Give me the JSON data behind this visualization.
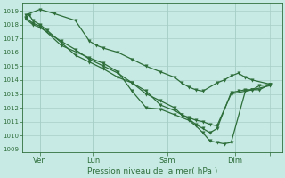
{
  "bg_color": "#c8eae4",
  "grid_color": "#a8cec8",
  "line_color": "#2d6e3a",
  "ylabel_values": [
    1009,
    1010,
    1011,
    1012,
    1013,
    1014,
    1015,
    1016,
    1017,
    1018,
    1019
  ],
  "ylim": [
    1008.8,
    1019.6
  ],
  "xlim": [
    -2,
    145
  ],
  "xtick_positions": [
    8,
    38,
    80,
    118,
    138
  ],
  "xtick_labels": [
    "Ven",
    "Lun",
    "Sam",
    "Dim",
    ""
  ],
  "xlabel": "Pression niveau de la mer( hPa )",
  "series1_x": [
    0,
    2,
    4,
    8,
    12,
    20,
    28,
    36,
    44,
    52,
    60,
    68,
    76,
    84,
    88,
    92,
    96,
    100,
    104,
    108,
    116,
    120,
    124,
    128,
    132,
    138
  ],
  "series1_y": [
    1018.5,
    1018.7,
    1018.3,
    1018.0,
    1017.6,
    1016.7,
    1015.8,
    1015.3,
    1014.8,
    1014.2,
    1013.8,
    1013.0,
    1012.5,
    1012.0,
    1011.5,
    1011.2,
    1010.8,
    1010.5,
    1010.2,
    1010.5,
    1013.1,
    1013.2,
    1013.3,
    1013.3,
    1013.6,
    1013.7
  ],
  "series2_x": [
    0,
    4,
    8,
    20,
    28,
    36,
    44,
    52,
    60,
    68,
    76,
    84,
    88,
    92,
    96,
    100,
    104,
    108,
    116,
    124,
    128,
    132,
    138
  ],
  "series2_y": [
    1018.4,
    1018.0,
    1017.8,
    1016.8,
    1016.2,
    1015.5,
    1015.0,
    1014.5,
    1013.8,
    1013.2,
    1012.2,
    1011.8,
    1011.5,
    1011.3,
    1011.1,
    1011.0,
    1010.8,
    1010.7,
    1013.0,
    1013.2,
    1013.3,
    1013.3,
    1013.7
  ],
  "series3_x": [
    0,
    4,
    8,
    20,
    36,
    44,
    52,
    60,
    68,
    76,
    84,
    92,
    96,
    100,
    104,
    108,
    112,
    116,
    124,
    128,
    138
  ],
  "series3_y": [
    1018.5,
    1018.1,
    1017.9,
    1016.5,
    1015.6,
    1015.2,
    1014.6,
    1013.2,
    1012.0,
    1011.9,
    1011.5,
    1011.1,
    1010.7,
    1010.2,
    1009.6,
    1009.5,
    1009.4,
    1009.5,
    1013.2,
    1013.3,
    1013.6
  ],
  "series4_x": [
    0,
    8,
    16,
    28,
    36,
    40,
    44,
    52,
    60,
    68,
    76,
    84,
    88,
    92,
    96,
    100,
    108,
    112,
    116,
    120,
    124,
    128,
    138
  ],
  "series4_y": [
    1018.7,
    1019.1,
    1018.8,
    1018.3,
    1016.8,
    1016.5,
    1016.3,
    1016.0,
    1015.5,
    1015.0,
    1014.6,
    1014.2,
    1013.8,
    1013.5,
    1013.3,
    1013.2,
    1013.8,
    1014.0,
    1014.3,
    1014.5,
    1014.2,
    1014.0,
    1013.7
  ]
}
